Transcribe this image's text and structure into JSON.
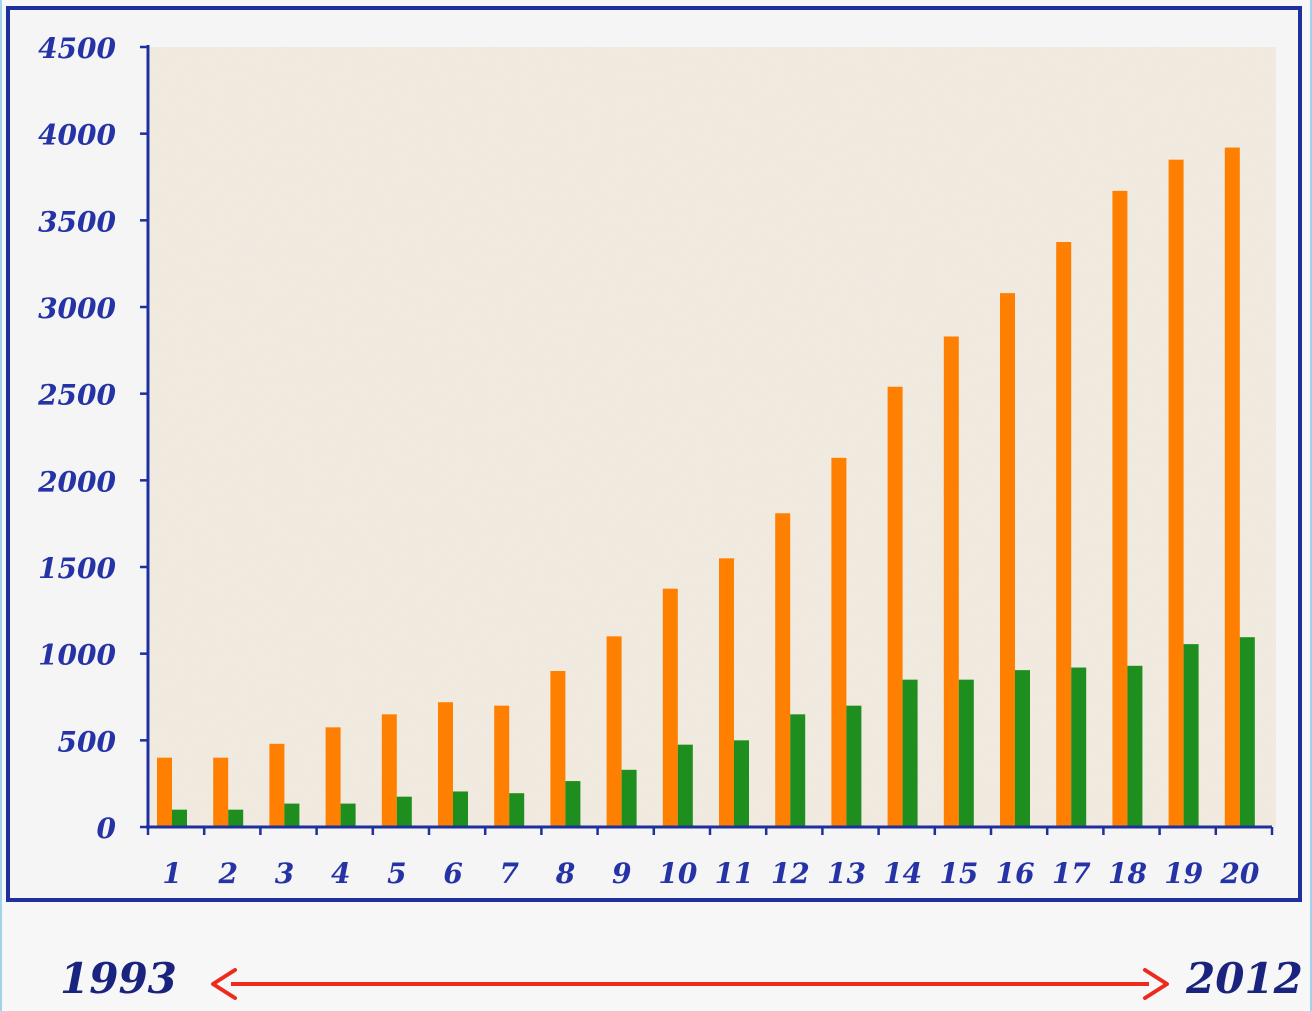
{
  "chart_data": {
    "type": "bar",
    "categories": [
      "1",
      "2",
      "3",
      "4",
      "5",
      "6",
      "7",
      "8",
      "9",
      "10",
      "11",
      "12",
      "13",
      "14",
      "15",
      "16",
      "17",
      "18",
      "19",
      "20"
    ],
    "series": [
      {
        "color": "#ff8000",
        "values": [
          400,
          400,
          480,
          575,
          650,
          720,
          700,
          900,
          1100,
          1375,
          1550,
          1810,
          2130,
          2540,
          2830,
          3080,
          3375,
          3670,
          3850,
          3920
        ]
      },
      {
        "color": "#1e8e1e",
        "values": [
          100,
          100,
          135,
          135,
          175,
          205,
          195,
          265,
          330,
          475,
          500,
          650,
          700,
          850,
          850,
          905,
          920,
          930,
          1055,
          1095
        ]
      }
    ],
    "ylim": [
      0,
      4500
    ],
    "yticks": [
      0,
      500,
      1000,
      1500,
      2000,
      2500,
      3000,
      3500,
      4000,
      4500
    ],
    "grid": false,
    "xlabel": "",
    "ylabel": "",
    "title": ""
  },
  "annotations": {
    "start_year": "1993",
    "end_year": "2012",
    "arrow_color": "#ee2a1c"
  }
}
